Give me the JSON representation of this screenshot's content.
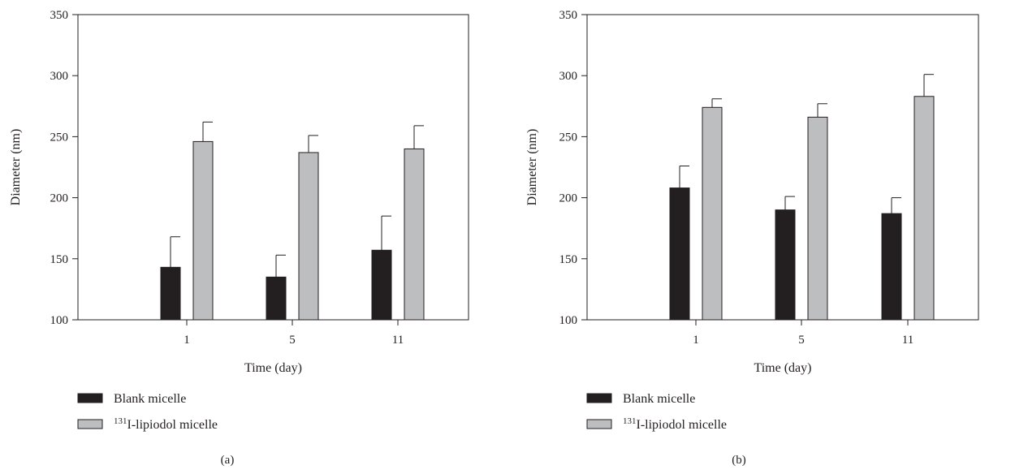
{
  "chart_data": [
    {
      "type": "bar",
      "panel_label": "(a)",
      "categories": [
        "1",
        "5",
        "11"
      ],
      "xlabel": "Time (day)",
      "ylabel": "Diameter (nm)",
      "ylim": [
        100,
        350
      ],
      "yticks": [
        "100",
        "150",
        "200",
        "250",
        "300",
        "350"
      ],
      "grid": false,
      "legend_position": "bottom-left",
      "series": [
        {
          "name": "Blank micelle",
          "color": "#231f20",
          "values": [
            143,
            135,
            157
          ],
          "errors": [
            25,
            18,
            28
          ]
        },
        {
          "name_sup": "131",
          "name": "I-lipiodol micelle",
          "color": "#bcbec0",
          "values": [
            246,
            237,
            240
          ],
          "errors": [
            16,
            14,
            19
          ]
        }
      ]
    },
    {
      "type": "bar",
      "panel_label": "(b)",
      "categories": [
        "1",
        "5",
        "11"
      ],
      "xlabel": "Time (day)",
      "ylabel": "Diameter (nm)",
      "ylim": [
        100,
        350
      ],
      "yticks": [
        "100",
        "150",
        "200",
        "250",
        "300",
        "350"
      ],
      "grid": false,
      "legend_position": "bottom-left",
      "series": [
        {
          "name": "Blank micelle",
          "color": "#231f20",
          "values": [
            208,
            190,
            187
          ],
          "errors": [
            18,
            11,
            13
          ]
        },
        {
          "name_sup": "131",
          "name": "I-lipiodol micelle",
          "color": "#bcbec0",
          "values": [
            274,
            266,
            283
          ],
          "errors": [
            7,
            11,
            18
          ]
        }
      ]
    }
  ]
}
